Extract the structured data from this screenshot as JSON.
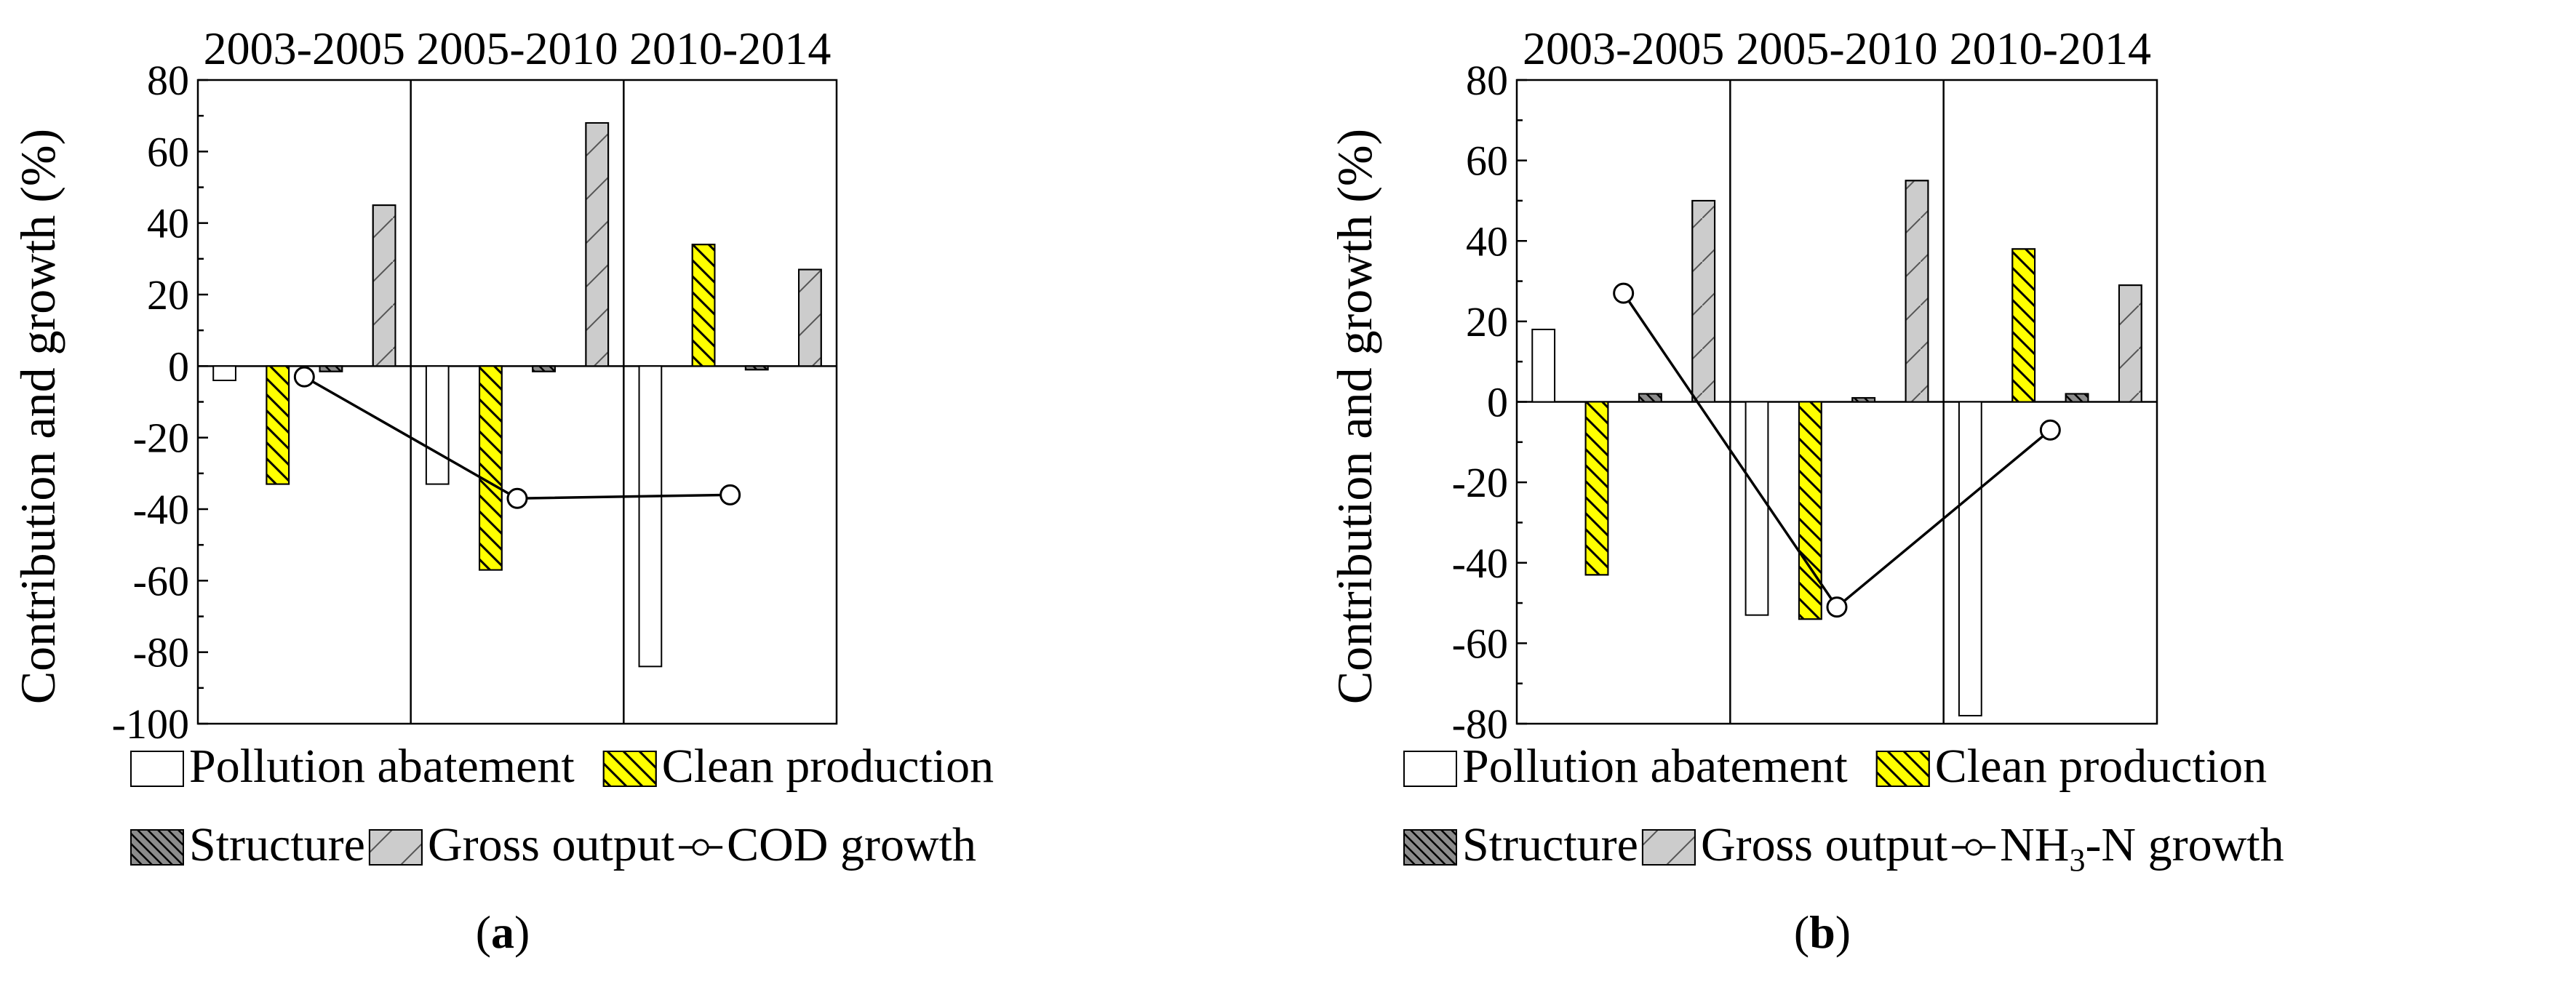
{
  "colors": {
    "pollution": "#ffffff",
    "clean": "#ffff00",
    "structure": "#8c8c8c",
    "gross": "#cccccc",
    "line": "#000000"
  },
  "chart_data": [
    {
      "panel": "a",
      "type": "bar",
      "panel_label": "(a)",
      "panel_letter": "a",
      "ylabel": "Contribution and growth (%)",
      "ylim": [
        -100,
        80
      ],
      "yticks": [
        80,
        60,
        40,
        20,
        0,
        -20,
        -40,
        -60,
        -80,
        -100
      ],
      "ytick_labels": [
        "80",
        "60",
        "40",
        "20",
        "0",
        "-20",
        "-40",
        "-60",
        "-80",
        "-100"
      ],
      "periods": [
        "2003-2005",
        "2005-2010",
        "2010-2014"
      ],
      "series": [
        {
          "name": "Pollution abatement",
          "key": "pollution",
          "values": [
            -4,
            -33,
            -84
          ]
        },
        {
          "name": "Clean production",
          "key": "clean",
          "values": [
            -33,
            -57,
            34
          ]
        },
        {
          "name": "Structure",
          "key": "structure",
          "values": [
            -1.5,
            -1.5,
            -1
          ]
        },
        {
          "name": "Gross output",
          "key": "gross",
          "values": [
            45,
            68,
            27
          ]
        }
      ],
      "growth": {
        "name": "COD growth",
        "values": [
          -3,
          -37,
          -36
        ]
      },
      "legend": {
        "row1": [
          "Pollution abatement",
          "Clean production"
        ],
        "row2": [
          "Structure",
          "Gross output",
          "COD growth"
        ]
      }
    },
    {
      "panel": "b",
      "type": "bar",
      "panel_label": "(b)",
      "panel_letter": "b",
      "ylabel": "Contribution and growth (%)",
      "ylim": [
        -80,
        80
      ],
      "yticks": [
        80,
        60,
        40,
        20,
        0,
        -20,
        -40,
        -60,
        -80
      ],
      "ytick_labels": [
        "80",
        "60",
        "40",
        "20",
        "0",
        "-20",
        "-40",
        "-60",
        "-80"
      ],
      "periods": [
        "2003-2005",
        "2005-2010",
        "2010-2014"
      ],
      "series": [
        {
          "name": "Pollution abatement",
          "key": "pollution",
          "values": [
            18,
            -53,
            -78
          ]
        },
        {
          "name": "Clean production",
          "key": "clean",
          "values": [
            -43,
            -54,
            38
          ]
        },
        {
          "name": "Structure",
          "key": "structure",
          "values": [
            2,
            1,
            2
          ]
        },
        {
          "name": "Gross output",
          "key": "gross",
          "values": [
            50,
            55,
            29
          ]
        }
      ],
      "growth": {
        "name": "NH3-N growth",
        "values": [
          27,
          -51,
          -7
        ]
      },
      "legend": {
        "row1": [
          "Pollution abatement",
          "Clean production"
        ],
        "row2": [
          "Structure",
          "Gross output",
          "NH3-N growth"
        ]
      }
    }
  ]
}
